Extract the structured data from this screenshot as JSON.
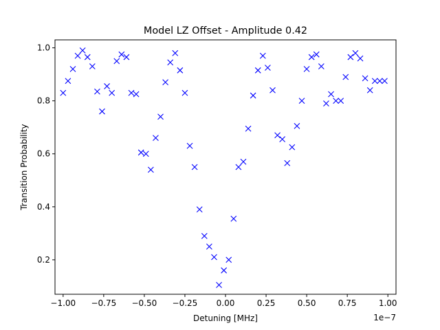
{
  "chart_data": {
    "type": "scatter",
    "title": "Model LZ Offset - Amplitude 0.42",
    "xlabel": "Detuning [MHz]",
    "ylabel": "Transition Probability",
    "x_offset_label": "1e−7",
    "xlim": [
      -1.05,
      1.05
    ],
    "ylim": [
      0.07,
      1.03
    ],
    "x_ticks": [
      -1.0,
      -0.75,
      -0.5,
      -0.25,
      0.0,
      0.25,
      0.5,
      0.75,
      1.0
    ],
    "x_tick_labels": [
      "−1.00",
      "−0.75",
      "−0.50",
      "−0.25",
      "0.00",
      "0.25",
      "0.50",
      "0.75",
      "1.00"
    ],
    "y_ticks": [
      0.2,
      0.4,
      0.6,
      0.8,
      1.0
    ],
    "y_tick_labels": [
      "0.2",
      "0.4",
      "0.6",
      "0.8",
      "1.0"
    ],
    "grid": false,
    "marker": "x",
    "marker_color": "#0000ff",
    "series": [
      {
        "x": [
          -1.0,
          -0.97,
          -0.94,
          -0.91,
          -0.88,
          -0.85,
          -0.82,
          -0.79,
          -0.76,
          -0.73,
          -0.7,
          -0.67,
          -0.64,
          -0.61,
          -0.58,
          -0.55,
          -0.52,
          -0.49,
          -0.46,
          -0.43,
          -0.4,
          -0.37,
          -0.34,
          -0.31,
          -0.28,
          -0.25,
          -0.22,
          -0.19,
          -0.16,
          -0.13,
          -0.1,
          -0.07,
          -0.04,
          -0.01,
          0.02,
          0.05,
          0.08,
          0.11,
          0.14,
          0.17,
          0.2,
          0.23,
          0.26,
          0.29,
          0.32,
          0.35,
          0.38,
          0.41,
          0.44,
          0.47,
          0.5,
          0.53,
          0.56,
          0.59,
          0.62,
          0.65,
          0.68,
          0.71,
          0.74,
          0.77,
          0.8,
          0.83,
          0.86,
          0.89,
          0.92,
          0.95,
          0.98
        ],
        "y": [
          0.83,
          0.875,
          0.92,
          0.97,
          0.99,
          0.965,
          0.93,
          0.835,
          0.76,
          0.855,
          0.83,
          0.95,
          0.975,
          0.965,
          0.83,
          0.825,
          0.605,
          0.6,
          0.54,
          0.66,
          0.74,
          0.87,
          0.945,
          0.98,
          0.915,
          0.83,
          0.63,
          0.55,
          0.39,
          0.29,
          0.25,
          0.21,
          0.105,
          0.16,
          0.2,
          0.355,
          0.55,
          0.57,
          0.695,
          0.82,
          0.915,
          0.97,
          0.925,
          0.84,
          0.67,
          0.655,
          0.565,
          0.625,
          0.705,
          0.8,
          0.92,
          0.965,
          0.975,
          0.93,
          0.79,
          0.825,
          0.8,
          0.8,
          0.89,
          0.965,
          0.98,
          0.96,
          0.885,
          0.84,
          0.875,
          0.875,
          0.875
        ]
      }
    ]
  }
}
